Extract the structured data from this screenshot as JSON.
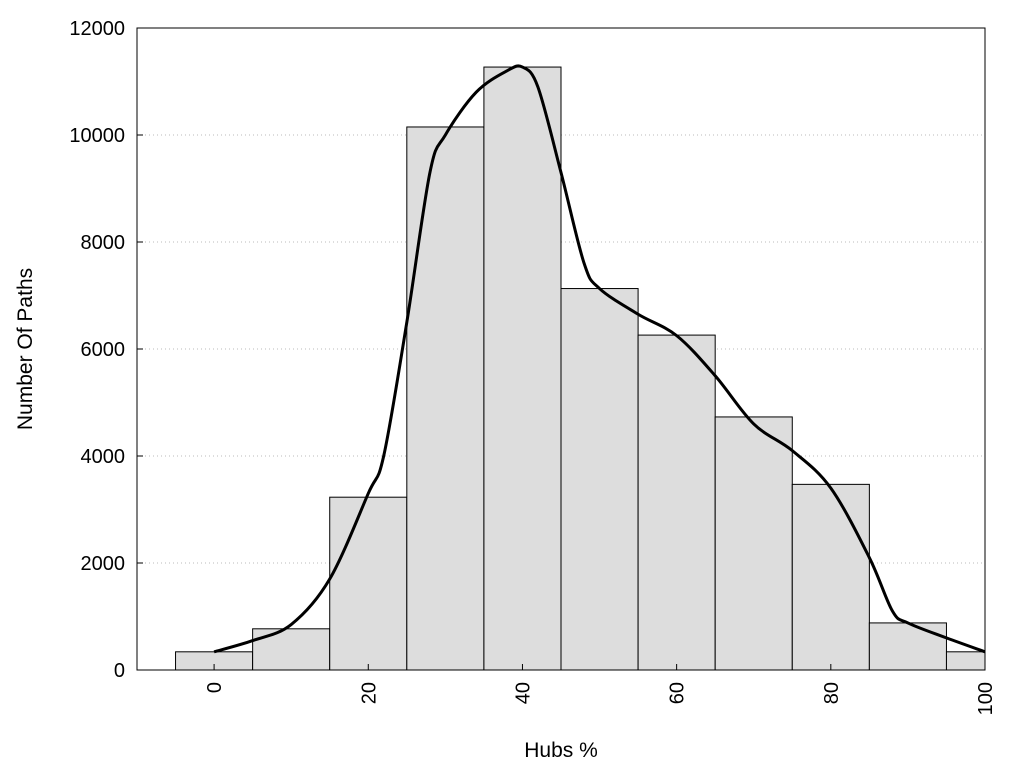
{
  "chart_data": {
    "type": "bar",
    "title": "",
    "xlabel": "Hubs %",
    "ylabel": "Number Of Paths",
    "xlim": [
      -10,
      100
    ],
    "ylim": [
      0,
      12000
    ],
    "x_ticks": [
      0,
      20,
      40,
      60,
      80,
      100
    ],
    "y_ticks": [
      0,
      2000,
      4000,
      6000,
      8000,
      10000,
      12000
    ],
    "grid": "horizontal dotted",
    "bar_color": "#dddddd",
    "bar_edge_color": "#000000",
    "line_color": "#000000",
    "bins": [
      {
        "x": 0,
        "value": 340
      },
      {
        "x": 10,
        "value": 770
      },
      {
        "x": 20,
        "value": 3230
      },
      {
        "x": 30,
        "value": 10150
      },
      {
        "x": 40,
        "value": 11270
      },
      {
        "x": 50,
        "value": 7130
      },
      {
        "x": 60,
        "value": 6260
      },
      {
        "x": 70,
        "value": 4730
      },
      {
        "x": 80,
        "value": 3470
      },
      {
        "x": 90,
        "value": 880
      },
      {
        "x": 100,
        "value": 340
      }
    ],
    "bin_width": 10,
    "density_curve": [
      [
        0,
        340
      ],
      [
        5,
        550
      ],
      [
        10,
        850
      ],
      [
        15,
        1700
      ],
      [
        20,
        3300
      ],
      [
        22,
        4000
      ],
      [
        25,
        6500
      ],
      [
        28,
        9300
      ],
      [
        30,
        10000
      ],
      [
        34,
        10800
      ],
      [
        38,
        11200
      ],
      [
        40,
        11270
      ],
      [
        42,
        10900
      ],
      [
        45,
        9300
      ],
      [
        48,
        7600
      ],
      [
        50,
        7130
      ],
      [
        55,
        6650
      ],
      [
        60,
        6250
      ],
      [
        65,
        5500
      ],
      [
        70,
        4600
      ],
      [
        75,
        4100
      ],
      [
        80,
        3400
      ],
      [
        85,
        2100
      ],
      [
        88,
        1100
      ],
      [
        90,
        880
      ],
      [
        95,
        600
      ],
      [
        100,
        340
      ]
    ]
  }
}
